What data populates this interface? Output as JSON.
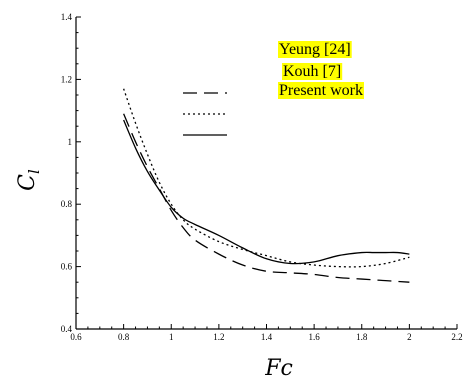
{
  "chart_data": {
    "type": "line",
    "xlabel": "Fc",
    "ylabel": "C_l",
    "xlim": [
      0.6,
      2.2
    ],
    "ylim": [
      0.4,
      1.4
    ],
    "x_ticks": [
      "0.6",
      "0.8",
      "1",
      "1.2",
      "1.4",
      "1.6",
      "1.8",
      "2",
      "2.2"
    ],
    "y_ticks": [
      "0.4",
      "0.6",
      "0.8",
      "1",
      "1.2",
      "1.4"
    ],
    "grid": false,
    "legend_position": "top-right",
    "legend_highlight_color": "#ffff00",
    "series": [
      {
        "name": "Yeung  [24]",
        "style": "dashed",
        "x": [
          0.8,
          0.85,
          0.9,
          0.95,
          1.0,
          1.05,
          1.1,
          1.2,
          1.3,
          1.4,
          1.5,
          1.6,
          1.7,
          1.8,
          1.9,
          2.0
        ],
        "y": [
          1.09,
          1.0,
          0.92,
          0.85,
          0.78,
          0.725,
          0.685,
          0.64,
          0.605,
          0.585,
          0.58,
          0.575,
          0.565,
          0.56,
          0.555,
          0.55
        ]
      },
      {
        "name": "Kouh [7]",
        "style": "dotted",
        "x": [
          0.8,
          0.85,
          0.9,
          0.95,
          1.0,
          1.05,
          1.1,
          1.2,
          1.3,
          1.4,
          1.5,
          1.6,
          1.7,
          1.8,
          1.9,
          2.0
        ],
        "y": [
          1.17,
          1.06,
          0.96,
          0.87,
          0.8,
          0.75,
          0.72,
          0.68,
          0.655,
          0.635,
          0.615,
          0.605,
          0.6,
          0.6,
          0.61,
          0.63
        ]
      },
      {
        "name": "Present work",
        "style": "solid",
        "x": [
          0.8,
          0.85,
          0.9,
          0.95,
          1.0,
          1.05,
          1.1,
          1.2,
          1.3,
          1.4,
          1.5,
          1.6,
          1.7,
          1.8,
          1.85,
          1.9,
          1.95,
          2.0
        ],
        "y": [
          1.07,
          0.98,
          0.905,
          0.845,
          0.79,
          0.755,
          0.735,
          0.7,
          0.66,
          0.625,
          0.61,
          0.615,
          0.635,
          0.645,
          0.645,
          0.645,
          0.645,
          0.64
        ]
      }
    ]
  }
}
